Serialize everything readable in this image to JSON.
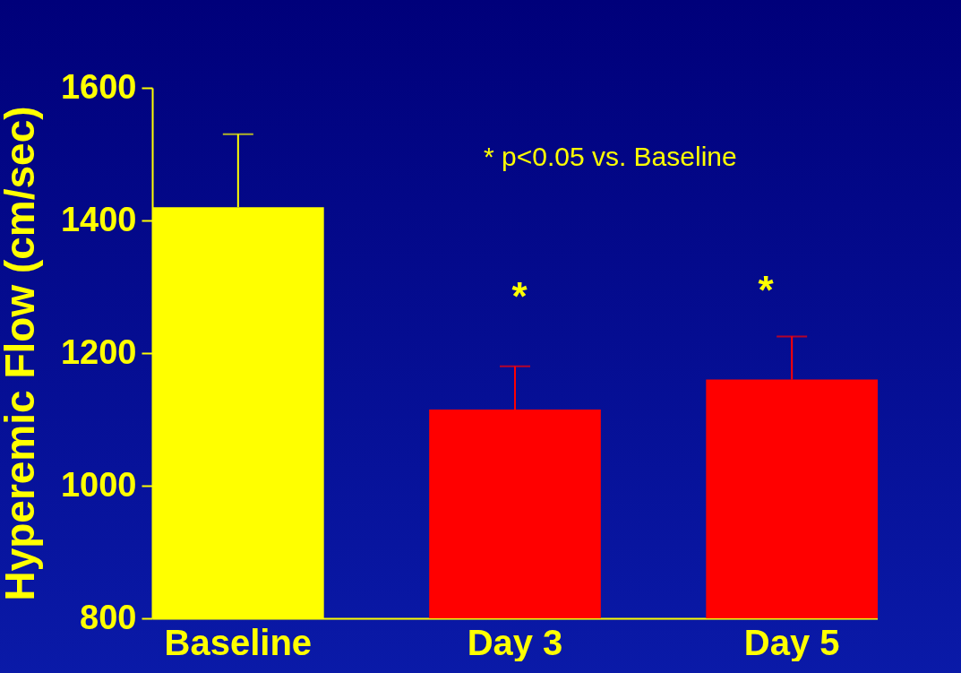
{
  "chart_data": {
    "type": "bar",
    "ylabel": "Hyperemic Flow (cm/sec)",
    "categories": [
      "Baseline",
      "Day 3",
      "Day 5"
    ],
    "values": [
      1420,
      1115,
      1160
    ],
    "colors": [
      "#ffff00",
      "#ff0000",
      "#ff0000"
    ],
    "errors": [
      [
        1420,
        1530
      ],
      [
        1115,
        1180
      ],
      [
        1160,
        1225
      ]
    ],
    "ylim": [
      800,
      1600
    ],
    "yticks": [
      800,
      1000,
      1200,
      1400,
      1600
    ],
    "grid": false,
    "legend": false,
    "annotations": [
      "* p<0.05 vs. Baseline",
      "*",
      "*"
    ]
  }
}
